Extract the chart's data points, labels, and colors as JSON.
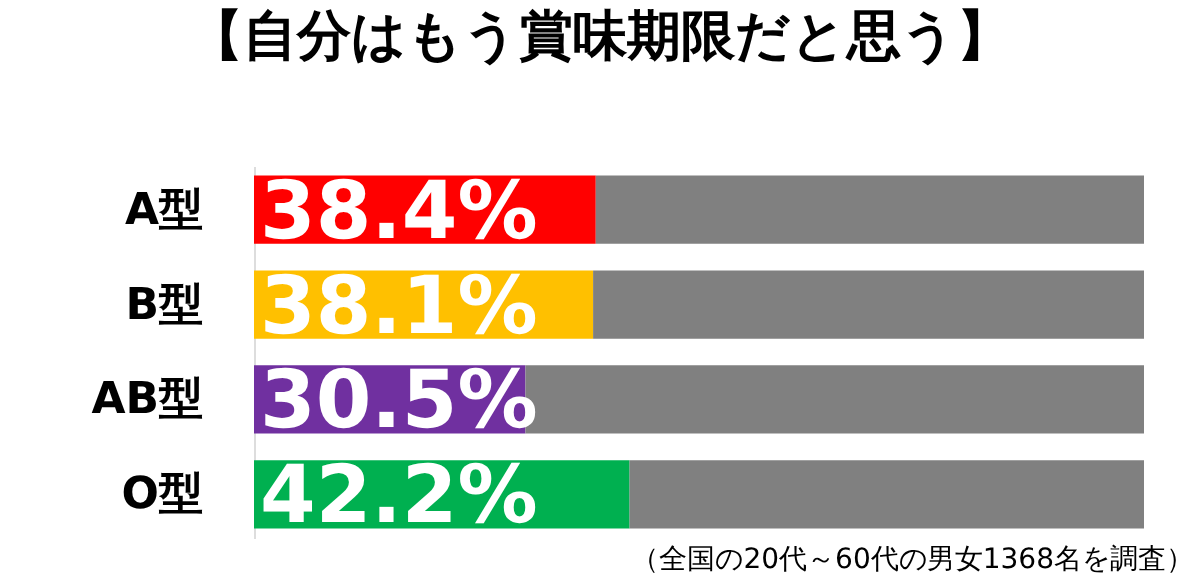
{
  "chart_data": {
    "type": "bar",
    "orientation": "horizontal",
    "stacked": true,
    "title": "【自分はもう賞味期限だと思う】",
    "categories": [
      "A型",
      "B型",
      "AB型",
      "O型"
    ],
    "series": [
      {
        "colors": [
          "#ff0000",
          "#ffc000",
          "#7030a0",
          "#00b050"
        ],
        "values": [
          38.4,
          38.1,
          30.5,
          42.2
        ],
        "value_labels": [
          "38.4%",
          "38.1%",
          "30.5%",
          "42.2%"
        ]
      },
      {
        "color": "#808080",
        "values": [
          61.6,
          61.9,
          69.5,
          57.8
        ]
      }
    ],
    "xlim": [
      0,
      100
    ],
    "tick_labels": "y",
    "annotations": [
      "（全国の20代～60代の男女1368名を調査）"
    ]
  }
}
